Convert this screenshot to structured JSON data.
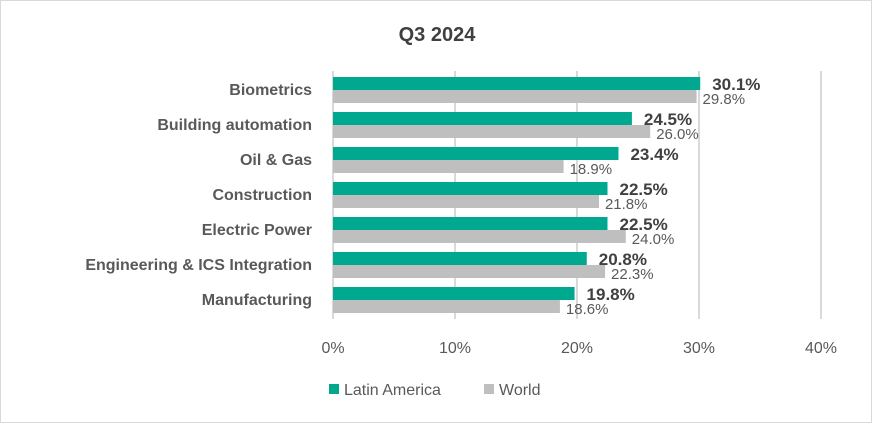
{
  "chart_data": {
    "type": "bar",
    "orientation": "horizontal",
    "title": "Q3 2024",
    "xlabel": "",
    "ylabel": "",
    "categories": [
      "Biometrics",
      "Building automation",
      "Oil & Gas",
      "Construction",
      "Electric Power",
      "Engineering & ICS Integration",
      "Manufacturing"
    ],
    "series": [
      {
        "name": "Latin America",
        "color": "#00A88F",
        "values": [
          30.1,
          24.5,
          23.4,
          22.5,
          22.5,
          20.8,
          19.8
        ],
        "labels": [
          "30.1%",
          "24.5%",
          "23.4%",
          "22.5%",
          "22.5%",
          "20.8%",
          "19.8%"
        ]
      },
      {
        "name": "World",
        "color": "#BFBFBF",
        "values": [
          29.8,
          26.0,
          18.9,
          21.8,
          24.0,
          22.3,
          18.6
        ],
        "labels": [
          "29.8%",
          "26.0%",
          "18.9%",
          "21.8%",
          "24.0%",
          "22.3%",
          "18.6%"
        ]
      }
    ],
    "xlim": [
      0,
      40
    ],
    "xticks": [
      0,
      10,
      20,
      30,
      40
    ],
    "xtick_labels": [
      "0%",
      "10%",
      "20%",
      "30%",
      "40%"
    ],
    "grid": true,
    "legend_position": "bottom"
  }
}
